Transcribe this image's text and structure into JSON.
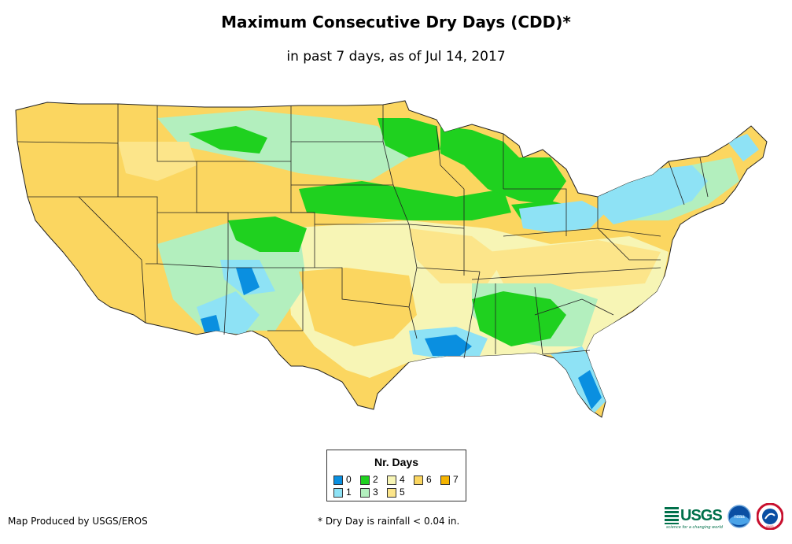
{
  "title": "Maximum Consecutive Dry Days (CDD)*",
  "subtitle": "in past 7 days, as of Jul 14, 2017",
  "legend": {
    "title": "Nr. Days",
    "items": [
      {
        "label": "0",
        "color": "#0a8fe0"
      },
      {
        "label": "1",
        "color": "#8ee2f5"
      },
      {
        "label": "2",
        "color": "#1fd11f"
      },
      {
        "label": "3",
        "color": "#b3efbe"
      },
      {
        "label": "4",
        "color": "#f7f5b5"
      },
      {
        "label": "5",
        "color": "#fce58a"
      },
      {
        "label": "6",
        "color": "#fbd660"
      },
      {
        "label": "7",
        "color": "#f5b400"
      }
    ]
  },
  "credit": "Map Produced by USGS/EROS",
  "footnote": "* Dry Day is rainfall < 0.04 in.",
  "logos": {
    "usgs": "USGS",
    "usgs_tagline": "science for a changing world",
    "noaa": "noaa",
    "nws": "NWS"
  }
}
